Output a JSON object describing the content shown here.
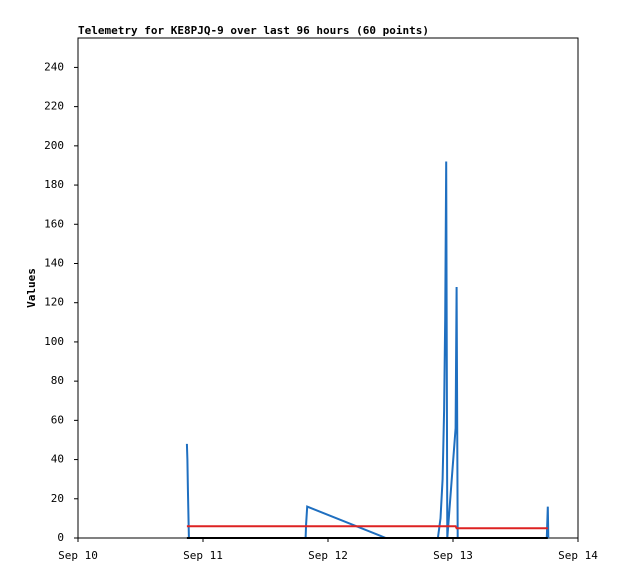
{
  "chart_data": {
    "type": "line",
    "title": "Telemetry for KE8PJQ-9 over last 96 hours (60 points)",
    "y_label": "Values",
    "xlim": [
      0,
      96
    ],
    "xticks": [
      {
        "value": 0,
        "label": "Sep 10"
      },
      {
        "value": 24,
        "label": "Sep 11"
      },
      {
        "value": 48,
        "label": "Sep 12"
      },
      {
        "value": 72,
        "label": "Sep 13"
      },
      {
        "value": 96,
        "label": "Sep 14"
      }
    ],
    "ylim": [
      0,
      255
    ],
    "yticks": [
      0,
      20,
      40,
      60,
      80,
      100,
      120,
      140,
      160,
      180,
      200,
      220,
      240
    ],
    "grid": false,
    "series": [
      {
        "color": "#1f6fc0",
        "x": [
          20.9,
          21.0,
          21.1,
          21.3,
          43.7,
          43.8,
          44.0,
          59.1,
          69.1,
          69.6,
          70.0,
          70.3,
          70.5,
          70.7,
          70.9,
          72.5,
          72.7,
          72.9,
          90.0,
          90.2,
          90.3
        ],
        "values": [
          48,
          40,
          25,
          0,
          0,
          7,
          16,
          0,
          0,
          10,
          30,
          65,
          112,
          192,
          0,
          56,
          128,
          0,
          0,
          16,
          0
        ]
      },
      {
        "color": "#dd2222",
        "x": [
          20.9,
          72.5,
          72.7,
          90.2
        ],
        "values": [
          6,
          6,
          5,
          5
        ]
      },
      {
        "color": "#000000",
        "x": [
          20.9,
          90.2
        ],
        "values": [
          0,
          0
        ]
      }
    ]
  }
}
